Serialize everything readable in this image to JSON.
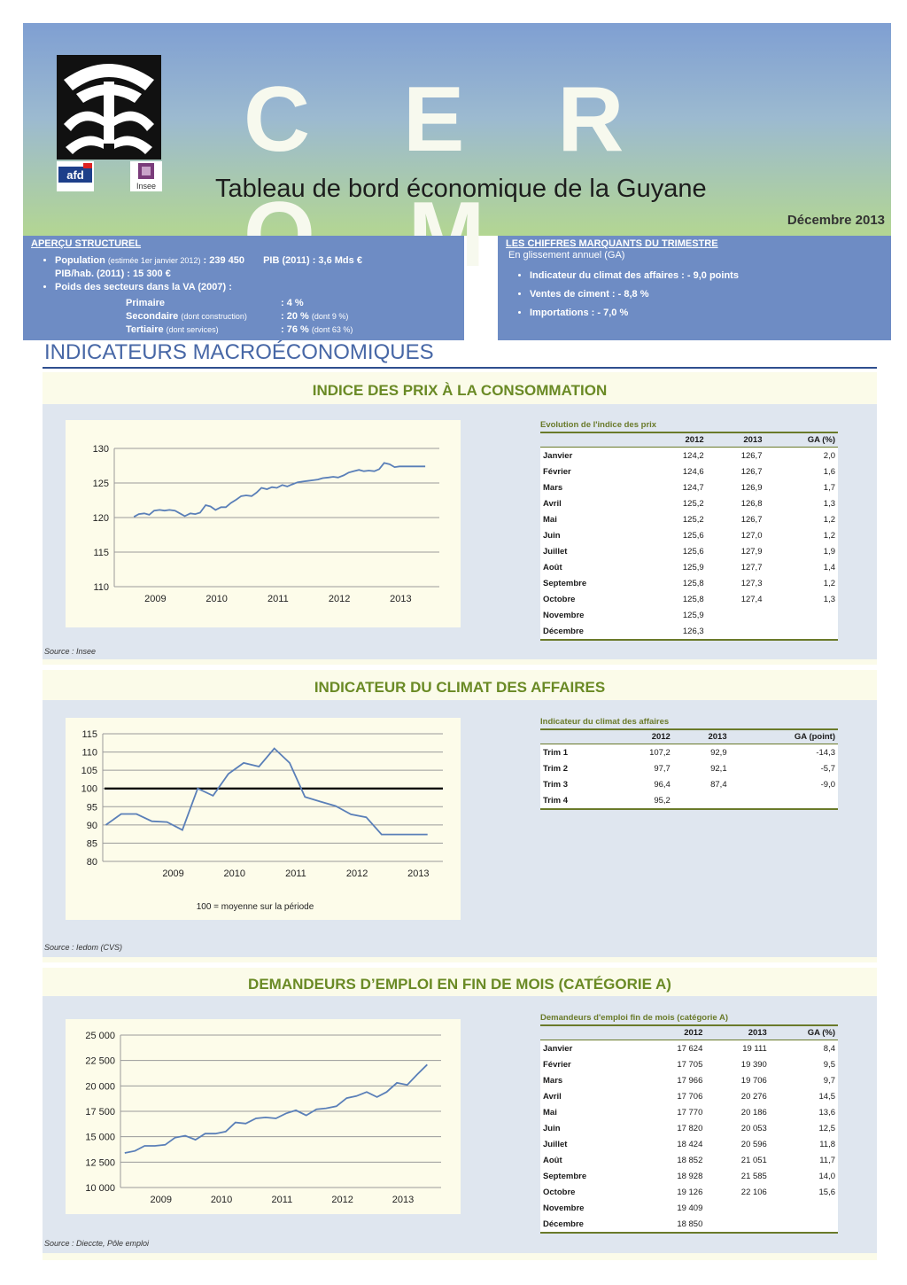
{
  "header": {
    "brand": "C E R O M",
    "subtitle": "Tableau de bord économique de la Guyane",
    "date": "Décembre 2013",
    "logos": [
      "afd",
      "Insee"
    ]
  },
  "apercu": {
    "title": "APERÇU STRUCTUREL",
    "population_label": "Population",
    "population_note": "(estimée 1er janvier 2012)",
    "population_value": ": 239 450",
    "pib": "PIB (2011) : 3,6 Mds €",
    "pib_hab": "PIB/hab. (2011) : 15 300 €",
    "poids": "Poids des secteurs dans la VA (2007) :",
    "primaire_label": "Primaire",
    "primaire_value": ": 4 %",
    "secondaire_label": "Secondaire",
    "secondaire_note": "(dont construction)",
    "secondaire_value": ": 20 %",
    "secondaire_dont": "(dont 9 %)",
    "tertiaire_label": "Tertiaire",
    "tertiaire_note": "(dont services)",
    "tertiaire_value": ": 76 %",
    "tertiaire_dont": "(dont 63 %)"
  },
  "chiffres": {
    "title": "LES CHIFFRES MARQUANTS DU TRIMESTRE",
    "subtitle": "En glissement annuel (GA)",
    "items": [
      "Indicateur du climat des affaires : - 9,0 points",
      "Ventes de ciment : - 8,8 %",
      "Importations : - 7,0 %"
    ]
  },
  "section_title": "INDICATEURS MACROÉCONOMIQUES",
  "ipc": {
    "title": "INDICE DES PRIX À LA CONSOMMATION",
    "source": "Source : Insee",
    "table": {
      "caption": "Evolution de l'indice des prix",
      "headers": [
        "",
        "2012",
        "2013",
        "GA (%)"
      ],
      "rows": [
        [
          "Janvier",
          "124,2",
          "126,7",
          "2,0"
        ],
        [
          "Février",
          "124,6",
          "126,7",
          "1,6"
        ],
        [
          "Mars",
          "124,7",
          "126,9",
          "1,7"
        ],
        [
          "Avril",
          "125,2",
          "126,8",
          "1,3"
        ],
        [
          "Mai",
          "125,2",
          "126,7",
          "1,2"
        ],
        [
          "Juin",
          "125,6",
          "127,0",
          "1,2"
        ],
        [
          "Juillet",
          "125,6",
          "127,9",
          "1,9"
        ],
        [
          "Août",
          "125,9",
          "127,7",
          "1,4"
        ],
        [
          "Septembre",
          "125,8",
          "127,3",
          "1,2"
        ],
        [
          "Octobre",
          "125,8",
          "127,4",
          "1,3"
        ],
        [
          "Novembre",
          "125,9",
          "",
          ""
        ],
        [
          "Décembre",
          "126,3",
          "",
          ""
        ]
      ]
    }
  },
  "ica": {
    "title": "INDICATEUR DU CLIMAT DES AFFAIRES",
    "source": "Source : Iedom (CVS)",
    "note": "100 = moyenne sur la période",
    "table": {
      "caption": "Indicateur du climat des affaires",
      "headers": [
        "",
        "2012",
        "2013",
        "GA (point)"
      ],
      "rows": [
        [
          "Trim 1",
          "107,2",
          "92,9",
          "-14,3"
        ],
        [
          "Trim 2",
          "97,7",
          "92,1",
          "-5,7"
        ],
        [
          "Trim 3",
          "96,4",
          "87,4",
          "-9,0"
        ],
        [
          "Trim 4",
          "95,2",
          "",
          ""
        ]
      ]
    }
  },
  "demandeurs": {
    "title": "DEMANDEURS D’EMPLOI EN FIN DE MOIS (CATÉGORIE A)",
    "source": "Source : Dieccte, Pôle emploi",
    "table": {
      "caption": "Demandeurs d'emploi fin de mois (catégorie A)",
      "headers": [
        "",
        "2012",
        "2013",
        "GA (%)"
      ],
      "rows": [
        [
          "Janvier",
          "17 624",
          "19 111",
          "8,4"
        ],
        [
          "Février",
          "17 705",
          "19 390",
          "9,5"
        ],
        [
          "Mars",
          "17 966",
          "19 706",
          "9,7"
        ],
        [
          "Avril",
          "17 706",
          "20 276",
          "14,5"
        ],
        [
          "Mai",
          "17 770",
          "20 186",
          "13,6"
        ],
        [
          "Juin",
          "17 820",
          "20 053",
          "12,5"
        ],
        [
          "Juillet",
          "18 424",
          "20 596",
          "11,8"
        ],
        [
          "Août",
          "18 852",
          "21 051",
          "11,7"
        ],
        [
          "Septembre",
          "18 928",
          "21 585",
          "14,0"
        ],
        [
          "Octobre",
          "19 126",
          "22 106",
          "15,6"
        ],
        [
          "Novembre",
          "19 409",
          "",
          ""
        ],
        [
          "Décembre",
          "18 850",
          "",
          ""
        ]
      ]
    }
  },
  "chart_data": [
    {
      "type": "line",
      "x_tick_labels": [
        "2009",
        "2010",
        "2011",
        "2012",
        "2013"
      ],
      "ylim": [
        110,
        130
      ],
      "y_ticks": [
        110,
        115,
        120,
        125,
        130
      ],
      "grid": true,
      "x": [
        2009.0,
        2009.08,
        2009.17,
        2009.25,
        2009.33,
        2009.42,
        2009.5,
        2009.58,
        2009.67,
        2009.75,
        2009.83,
        2009.92,
        2010.0,
        2010.08,
        2010.17,
        2010.25,
        2010.33,
        2010.42,
        2010.5,
        2010.58,
        2010.67,
        2010.75,
        2010.83,
        2010.92,
        2011.0,
        2011.08,
        2011.17,
        2011.25,
        2011.33,
        2011.42,
        2011.5,
        2011.58,
        2011.67,
        2011.75,
        2011.83,
        2011.92,
        2012.0,
        2012.08,
        2012.17,
        2012.25,
        2012.33,
        2012.42,
        2012.5,
        2012.58,
        2012.67,
        2012.75,
        2012.83,
        2012.92,
        2013.0,
        2013.08,
        2013.17,
        2013.25,
        2013.33,
        2013.42,
        2013.5,
        2013.58,
        2013.67,
        2013.75
      ],
      "series": [
        {
          "values": [
            120.1,
            120.5,
            120.6,
            120.4,
            121.0,
            121.1,
            121.0,
            121.1,
            121.0,
            120.6,
            120.2,
            120.6,
            120.5,
            120.7,
            121.8,
            121.6,
            121.1,
            121.5,
            121.5,
            122.1,
            122.6,
            123.1,
            123.2,
            123.1,
            123.6,
            124.3,
            124.1,
            124.4,
            124.3,
            124.7,
            124.5,
            124.8,
            125.1,
            125.2,
            125.3,
            125.4,
            125.5,
            125.7,
            125.8,
            125.9,
            125.8,
            126.1,
            126.5,
            126.7,
            126.9,
            126.7,
            126.8,
            126.7,
            127.0,
            127.9,
            127.7,
            127.3,
            127.4,
            127.4,
            127.4,
            127.4,
            127.4,
            127.4
          ]
        }
      ]
    },
    {
      "type": "line",
      "x_tick_labels": [
        "2009",
        "2010",
        "2011",
        "2012",
        "2013"
      ],
      "ylim": [
        80,
        115
      ],
      "y_ticks": [
        80,
        85,
        90,
        95,
        100,
        105,
        110,
        115
      ],
      "grid": true,
      "reference_line": 100,
      "x": [
        2008.25,
        2008.5,
        2008.75,
        2009.0,
        2009.25,
        2009.5,
        2009.75,
        2010.0,
        2010.25,
        2010.5,
        2010.75,
        2011.0,
        2011.25,
        2011.5,
        2011.75,
        2012.0,
        2012.25,
        2012.5,
        2012.75,
        2013.0,
        2013.25,
        2013.5
      ],
      "series": [
        {
          "values": [
            90.0,
            93.0,
            93.0,
            91.0,
            90.8,
            88.6,
            100.0,
            98.0,
            104.0,
            107.0,
            106.0,
            111.0,
            107.0,
            97.7,
            96.4,
            95.2,
            92.9,
            92.1,
            87.4,
            87.4,
            87.4,
            87.4
          ]
        }
      ]
    },
    {
      "type": "line",
      "x_tick_labels": [
        "2009",
        "2010",
        "2011",
        "2012",
        "2013"
      ],
      "ylim": [
        10000,
        25000
      ],
      "y_ticks": [
        10000,
        12500,
        15000,
        17500,
        20000,
        22500,
        25000
      ],
      "y_tick_labels": [
        "10 000",
        "12 500",
        "15 000",
        "17 500",
        "20 000",
        "22 500",
        "25 000"
      ],
      "grid": true,
      "x": [
        2008.75,
        2008.92,
        2009.08,
        2009.25,
        2009.42,
        2009.58,
        2009.75,
        2009.92,
        2010.08,
        2010.25,
        2010.42,
        2010.58,
        2010.75,
        2010.92,
        2011.08,
        2011.25,
        2011.42,
        2011.58,
        2011.75,
        2011.92,
        2012.08,
        2012.25,
        2012.42,
        2012.58,
        2012.75,
        2012.92,
        2013.08,
        2013.25,
        2013.42,
        2013.58,
        2013.75
      ],
      "series": [
        {
          "values": [
            13400,
            13600,
            14100,
            14100,
            14200,
            14900,
            15100,
            14700,
            15300,
            15300,
            15500,
            16400,
            16300,
            16800,
            16900,
            16800,
            17300,
            17600,
            17100,
            17700,
            17800,
            18000,
            18800,
            19000,
            19400,
            18900,
            19400,
            20300,
            20100,
            21100,
            22100
          ]
        }
      ]
    }
  ]
}
